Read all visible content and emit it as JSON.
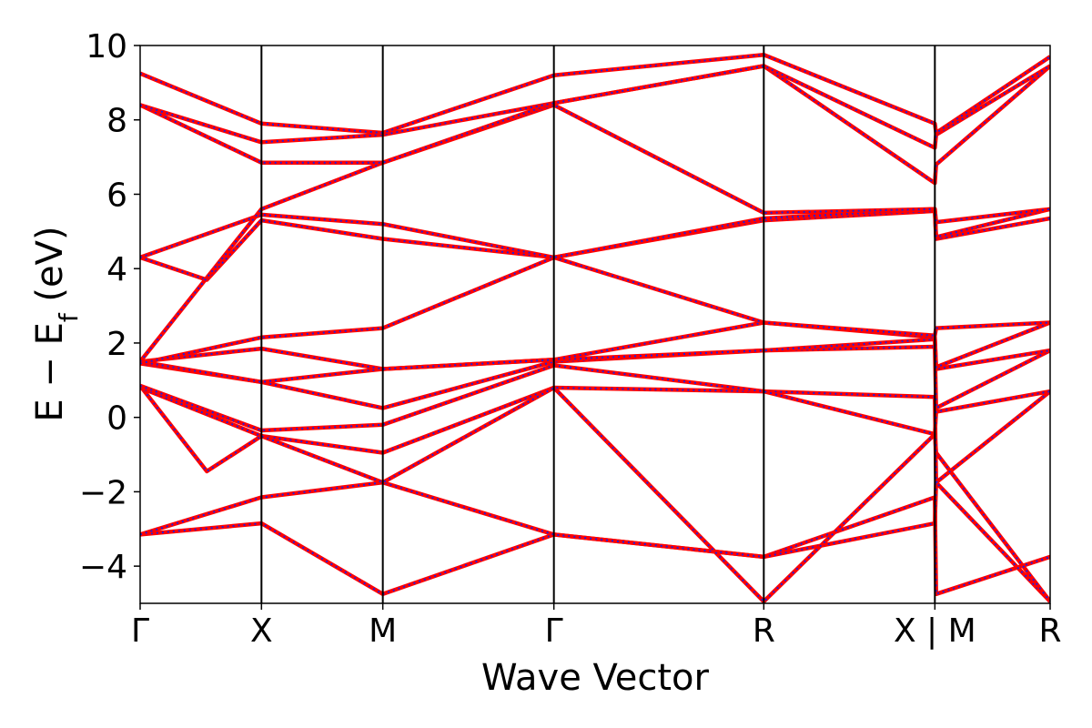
{
  "chart_data": {
    "type": "line",
    "title": "",
    "xlabel": "Wave Vector",
    "ylabel_main": "E − E",
    "ylabel_sub": "f",
    "ylabel_tail": " (eV)",
    "ylim": [
      -5,
      10
    ],
    "yticks": [
      {
        "value": -4,
        "label": "−4"
      },
      {
        "value": -2,
        "label": "−2"
      },
      {
        "value": 0,
        "label": "0"
      },
      {
        "value": 2,
        "label": "2"
      },
      {
        "value": 4,
        "label": "4"
      },
      {
        "value": 6,
        "label": "6"
      },
      {
        "value": 8,
        "label": "8"
      },
      {
        "value": 10,
        "label": "10"
      }
    ],
    "xlim": [
      0,
      7.5
    ],
    "kpoint_ticks": [
      {
        "x": 0.0,
        "label": "Γ"
      },
      {
        "x": 1.0,
        "label": "X"
      },
      {
        "x": 2.0,
        "label": "M"
      },
      {
        "x": 3.41,
        "label": "Γ"
      },
      {
        "x": 5.14,
        "label": "R"
      },
      {
        "x": 6.55,
        "label": "X | M"
      },
      {
        "x": 7.55,
        "label": "R"
      }
    ],
    "vlines": [
      1.0,
      2.0,
      3.41,
      5.14,
      6.55
    ],
    "line_colors": {
      "dft": "#ff0000",
      "model": "#1f1fe0"
    },
    "grid": false,
    "bands": [
      {
        "x": [
          0,
          1.0,
          2.0,
          3.41,
          5.14,
          6.55,
          6.56,
          7.55
        ],
        "y": [
          -3.15,
          -2.85,
          -4.75,
          -3.15,
          -3.75,
          -2.15,
          -4.75,
          -3.75
        ]
      },
      {
        "x": [
          0,
          1.0,
          2.0,
          3.41,
          5.14,
          6.55,
          6.56,
          7.55
        ],
        "y": [
          -3.15,
          -2.15,
          -1.75,
          -3.15,
          -3.75,
          -2.85,
          -1.75,
          -4.95
        ]
      },
      {
        "x": [
          0,
          0.55,
          1.0,
          2.0,
          3.41,
          5.14,
          6.55,
          6.56,
          7.55
        ],
        "y": [
          0.85,
          -1.45,
          -0.5,
          -0.95,
          0.8,
          -4.95,
          -0.45,
          -0.95,
          -4.95
        ]
      },
      {
        "x": [
          0,
          1.0,
          2.0,
          3.41,
          5.14,
          6.55,
          6.56,
          7.55
        ],
        "y": [
          0.8,
          -0.5,
          -1.75,
          0.8,
          0.7,
          0.55,
          -1.75,
          0.7
        ]
      },
      {
        "x": [
          0,
          1.0,
          2.0,
          3.41,
          5.14,
          6.55,
          6.56,
          7.55
        ],
        "y": [
          0.85,
          -0.35,
          -0.2,
          1.4,
          0.7,
          -0.45,
          0.15,
          0.7
        ]
      },
      {
        "x": [
          0,
          1.0,
          2.0,
          3.41,
          5.14,
          6.55,
          6.56,
          7.55
        ],
        "y": [
          1.45,
          0.95,
          0.25,
          1.5,
          1.8,
          1.9,
          0.25,
          1.8
        ]
      },
      {
        "x": [
          0,
          1.0,
          2.0,
          3.41,
          5.14,
          6.55,
          6.56,
          7.55
        ],
        "y": [
          1.5,
          0.95,
          1.3,
          1.55,
          1.8,
          2.1,
          1.3,
          1.8
        ]
      },
      {
        "x": [
          0,
          1.0,
          2.0,
          3.41,
          5.14,
          6.55,
          6.56,
          7.55
        ],
        "y": [
          1.5,
          1.85,
          1.3,
          1.55,
          2.55,
          2.15,
          1.35,
          2.55
        ]
      },
      {
        "x": [
          0,
          1.0,
          2.0,
          3.41,
          5.14,
          6.55,
          6.56,
          7.55
        ],
        "y": [
          1.45,
          2.15,
          2.4,
          4.3,
          2.55,
          2.2,
          2.4,
          2.55
        ]
      },
      {
        "x": [
          0,
          0.55,
          1.0,
          2.0,
          3.41,
          5.14,
          6.55,
          6.56,
          7.55
        ],
        "y": [
          4.3,
          3.7,
          5.3,
          4.8,
          4.3,
          5.3,
          5.55,
          4.8,
          5.35
        ]
      },
      {
        "x": [
          0,
          1.0,
          2.0,
          3.41,
          5.14,
          6.55,
          6.56,
          7.55
        ],
        "y": [
          4.3,
          5.45,
          5.2,
          4.3,
          5.35,
          5.6,
          4.85,
          5.6
        ]
      },
      {
        "x": [
          0,
          1.0,
          2.0,
          3.41,
          5.14,
          6.55,
          6.56,
          7.55
        ],
        "y": [
          1.5,
          5.6,
          6.85,
          8.4,
          5.5,
          5.6,
          5.25,
          5.6
        ]
      },
      {
        "x": [
          0,
          1.0,
          2.0,
          3.41,
          5.14,
          6.55,
          6.56,
          7.55
        ],
        "y": [
          8.4,
          6.85,
          6.85,
          8.45,
          9.45,
          6.3,
          6.8,
          9.45
        ]
      },
      {
        "x": [
          0,
          1.0,
          2.0,
          3.41,
          5.14,
          6.55,
          6.56,
          7.55
        ],
        "y": [
          8.4,
          7.4,
          7.6,
          8.45,
          9.45,
          7.25,
          7.6,
          9.45
        ]
      },
      {
        "x": [
          0,
          1.0,
          2.0,
          3.41,
          5.14,
          6.55,
          6.56,
          7.55
        ],
        "y": [
          9.25,
          7.9,
          7.65,
          9.2,
          9.75,
          7.9,
          7.65,
          9.7
        ]
      }
    ]
  }
}
